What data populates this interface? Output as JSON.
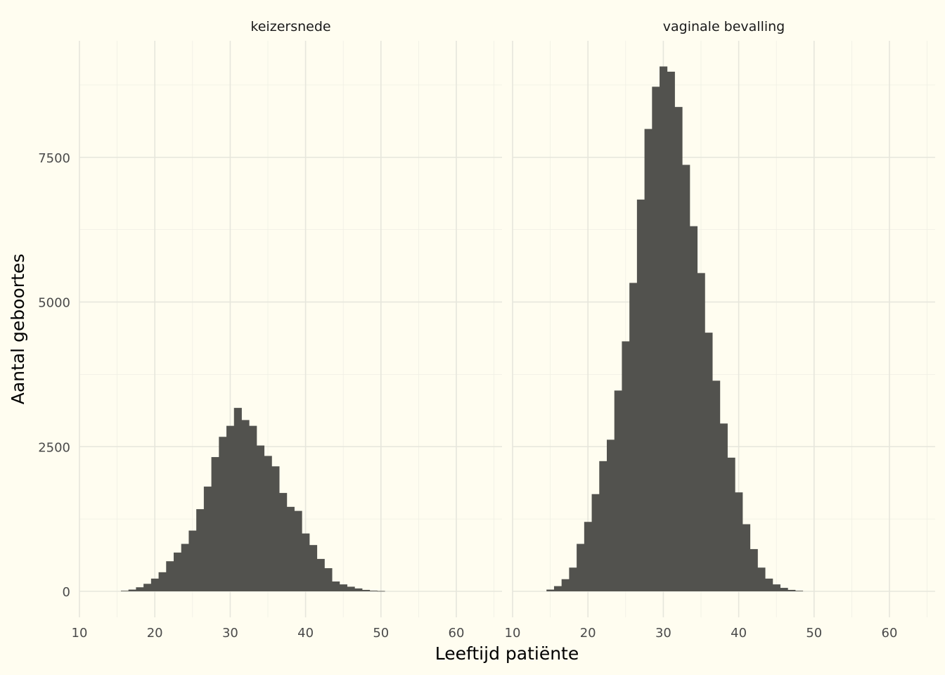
{
  "chart_data": {
    "type": "bar",
    "xlabel": "Leeftijd patiënte",
    "ylabel": "Aantal geboortes",
    "xlim": [
      10,
      65
    ],
    "ylim": [
      -350,
      9200
    ],
    "x_ticks": [
      10,
      20,
      30,
      40,
      50,
      60
    ],
    "y_ticks": [
      0,
      2500,
      5000,
      7500
    ],
    "grid": true,
    "bar_color": "#52524e",
    "background": "#fffdf0",
    "panels": [
      {
        "name": "keizersnede",
        "bins": [
          {
            "x0": 15.5,
            "x1": 16.5,
            "count": 10
          },
          {
            "x0": 16.5,
            "x1": 17.5,
            "count": 30
          },
          {
            "x0": 17.5,
            "x1": 18.5,
            "count": 70
          },
          {
            "x0": 18.5,
            "x1": 19.5,
            "count": 130
          },
          {
            "x0": 19.5,
            "x1": 20.5,
            "count": 220
          },
          {
            "x0": 20.5,
            "x1": 21.5,
            "count": 330
          },
          {
            "x0": 21.5,
            "x1": 22.5,
            "count": 520
          },
          {
            "x0": 22.5,
            "x1": 23.5,
            "count": 670
          },
          {
            "x0": 23.5,
            "x1": 24.5,
            "count": 820
          },
          {
            "x0": 24.5,
            "x1": 25.5,
            "count": 1050
          },
          {
            "x0": 25.5,
            "x1": 26.5,
            "count": 1420
          },
          {
            "x0": 26.5,
            "x1": 27.5,
            "count": 1810
          },
          {
            "x0": 27.5,
            "x1": 28.5,
            "count": 2320
          },
          {
            "x0": 28.5,
            "x1": 29.5,
            "count": 2670
          },
          {
            "x0": 29.5,
            "x1": 30.5,
            "count": 2860
          },
          {
            "x0": 30.5,
            "x1": 31.5,
            "count": 3170
          },
          {
            "x0": 31.5,
            "x1": 32.5,
            "count": 2960
          },
          {
            "x0": 32.5,
            "x1": 33.5,
            "count": 2860
          },
          {
            "x0": 33.5,
            "x1": 34.5,
            "count": 2520
          },
          {
            "x0": 34.5,
            "x1": 35.5,
            "count": 2340
          },
          {
            "x0": 35.5,
            "x1": 36.5,
            "count": 2160
          },
          {
            "x0": 36.5,
            "x1": 37.5,
            "count": 1700
          },
          {
            "x0": 37.5,
            "x1": 38.5,
            "count": 1460
          },
          {
            "x0": 38.5,
            "x1": 39.5,
            "count": 1390
          },
          {
            "x0": 39.5,
            "x1": 40.5,
            "count": 1000
          },
          {
            "x0": 40.5,
            "x1": 41.5,
            "count": 800
          },
          {
            "x0": 41.5,
            "x1": 42.5,
            "count": 560
          },
          {
            "x0": 42.5,
            "x1": 43.5,
            "count": 400
          },
          {
            "x0": 43.5,
            "x1": 44.5,
            "count": 170
          },
          {
            "x0": 44.5,
            "x1": 45.5,
            "count": 120
          },
          {
            "x0": 45.5,
            "x1": 46.5,
            "count": 80
          },
          {
            "x0": 46.5,
            "x1": 47.5,
            "count": 50
          },
          {
            "x0": 47.5,
            "x1": 48.5,
            "count": 25
          },
          {
            "x0": 48.5,
            "x1": 49.5,
            "count": 12
          },
          {
            "x0": 49.5,
            "x1": 50.5,
            "count": 6
          }
        ]
      },
      {
        "name": "vaginale bevalling",
        "bins": [
          {
            "x0": 14.5,
            "x1": 15.5,
            "count": 30
          },
          {
            "x0": 15.5,
            "x1": 16.5,
            "count": 90
          },
          {
            "x0": 16.5,
            "x1": 17.5,
            "count": 210
          },
          {
            "x0": 17.5,
            "x1": 18.5,
            "count": 410
          },
          {
            "x0": 18.5,
            "x1": 19.5,
            "count": 820
          },
          {
            "x0": 19.5,
            "x1": 20.5,
            "count": 1200
          },
          {
            "x0": 20.5,
            "x1": 21.5,
            "count": 1680
          },
          {
            "x0": 21.5,
            "x1": 22.5,
            "count": 2250
          },
          {
            "x0": 22.5,
            "x1": 23.5,
            "count": 2620
          },
          {
            "x0": 23.5,
            "x1": 24.5,
            "count": 3470
          },
          {
            "x0": 24.5,
            "x1": 25.5,
            "count": 4320
          },
          {
            "x0": 25.5,
            "x1": 26.5,
            "count": 5330
          },
          {
            "x0": 26.5,
            "x1": 27.5,
            "count": 6770
          },
          {
            "x0": 27.5,
            "x1": 28.5,
            "count": 7990
          },
          {
            "x0": 28.5,
            "x1": 29.5,
            "count": 8720
          },
          {
            "x0": 29.5,
            "x1": 30.5,
            "count": 9070
          },
          {
            "x0": 30.5,
            "x1": 31.5,
            "count": 8980
          },
          {
            "x0": 31.5,
            "x1": 32.5,
            "count": 8370
          },
          {
            "x0": 32.5,
            "x1": 33.5,
            "count": 7370
          },
          {
            "x0": 33.5,
            "x1": 34.5,
            "count": 6310
          },
          {
            "x0": 34.5,
            "x1": 35.5,
            "count": 5500
          },
          {
            "x0": 35.5,
            "x1": 36.5,
            "count": 4470
          },
          {
            "x0": 36.5,
            "x1": 37.5,
            "count": 3640
          },
          {
            "x0": 37.5,
            "x1": 38.5,
            "count": 2900
          },
          {
            "x0": 38.5,
            "x1": 39.5,
            "count": 2310
          },
          {
            "x0": 39.5,
            "x1": 40.5,
            "count": 1710
          },
          {
            "x0": 40.5,
            "x1": 41.5,
            "count": 1160
          },
          {
            "x0": 41.5,
            "x1": 42.5,
            "count": 730
          },
          {
            "x0": 42.5,
            "x1": 43.5,
            "count": 410
          },
          {
            "x0": 43.5,
            "x1": 44.5,
            "count": 220
          },
          {
            "x0": 44.5,
            "x1": 45.5,
            "count": 120
          },
          {
            "x0": 45.5,
            "x1": 46.5,
            "count": 60
          },
          {
            "x0": 46.5,
            "x1": 47.5,
            "count": 25
          },
          {
            "x0": 47.5,
            "x1": 48.5,
            "count": 10
          }
        ]
      }
    ]
  }
}
